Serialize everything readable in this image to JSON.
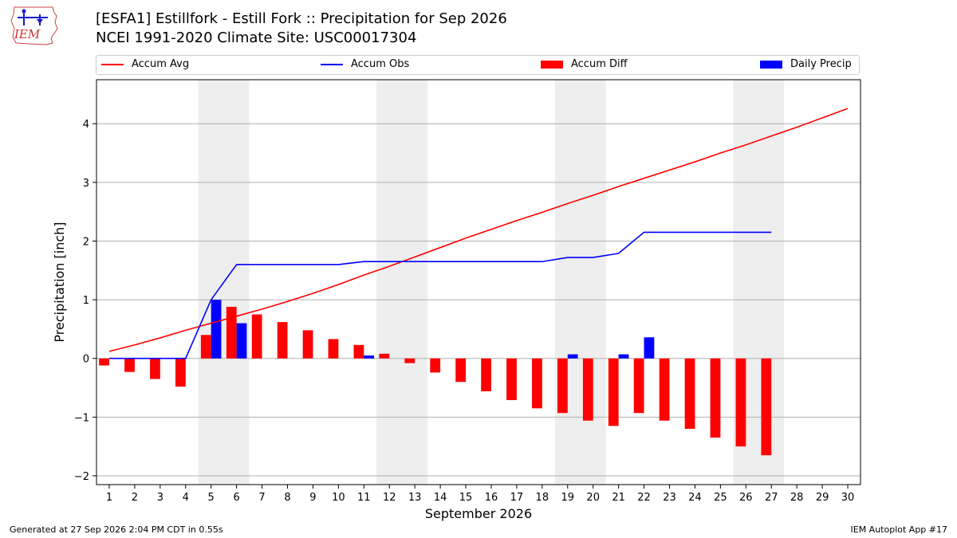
{
  "header": {
    "title_line1": "[ESFA1] Estillfork - Estill Fork :: Precipitation for Sep 2026",
    "title_line2": "NCEI 1991-2020 Climate Site: USC00017304"
  },
  "logo": {
    "text": "IEM"
  },
  "legend": {
    "items": [
      {
        "label": "Accum Avg",
        "kind": "line",
        "color": "#ff0000"
      },
      {
        "label": "Accum Obs",
        "kind": "line",
        "color": "#0000ff"
      },
      {
        "label": "Accum Diff",
        "kind": "box",
        "color": "#ff0000"
      },
      {
        "label": "Daily Precip",
        "kind": "box",
        "color": "#0000ff"
      }
    ]
  },
  "footer": {
    "left": "Generated at 27 Sep 2026 2:04 PM CDT in 0.55s",
    "right": "IEM Autoplot App #17"
  },
  "chart_data": {
    "type": "bar+line",
    "xlabel": "September 2026",
    "ylabel": "Precipitation [inch]",
    "x": [
      1,
      2,
      3,
      4,
      5,
      6,
      7,
      8,
      9,
      10,
      11,
      12,
      13,
      14,
      15,
      16,
      17,
      18,
      19,
      20,
      21,
      22,
      23,
      24,
      25,
      26,
      27,
      28,
      29,
      30
    ],
    "xlim": [
      0.5,
      30.5
    ],
    "ylim": [
      -2.15,
      4.75
    ],
    "yticks": [
      -2,
      -1,
      0,
      1,
      2,
      3,
      4
    ],
    "ytick_labels": [
      "−2",
      "−1",
      "0",
      "1",
      "2",
      "3",
      "4"
    ],
    "grid_y": true,
    "weekend_shading": [
      [
        4.5,
        6.5
      ],
      [
        11.5,
        13.5
      ],
      [
        18.5,
        20.5
      ],
      [
        25.5,
        27.5
      ]
    ],
    "series": [
      {
        "name": "Accum Avg",
        "type": "line",
        "color": "#ff0000",
        "values": [
          0.12,
          0.23,
          0.35,
          0.48,
          0.6,
          0.72,
          0.84,
          0.97,
          1.11,
          1.26,
          1.42,
          1.57,
          1.73,
          1.89,
          2.05,
          2.2,
          2.35,
          2.49,
          2.64,
          2.78,
          2.93,
          3.07,
          3.21,
          3.35,
          3.5,
          3.64,
          3.79,
          3.94,
          4.1,
          4.26
        ]
      },
      {
        "name": "Accum Obs",
        "type": "line",
        "color": "#0000ff",
        "values": [
          0,
          0,
          0,
          0,
          1.0,
          1.6,
          1.6,
          1.6,
          1.6,
          1.6,
          1.65,
          1.65,
          1.65,
          1.65,
          1.65,
          1.65,
          1.65,
          1.65,
          1.72,
          1.72,
          1.79,
          2.15,
          2.15,
          2.15,
          2.15,
          2.15,
          2.15,
          null,
          null,
          null
        ]
      },
      {
        "name": "Accum Diff",
        "type": "bar",
        "color": "#ff0000",
        "values": [
          -0.12,
          -0.23,
          -0.35,
          -0.48,
          0.4,
          0.88,
          0.75,
          0.62,
          0.48,
          0.33,
          0.23,
          0.08,
          -0.08,
          -0.24,
          -0.4,
          -0.56,
          -0.71,
          -0.85,
          -0.93,
          -1.06,
          -1.15,
          -0.93,
          -1.06,
          -1.2,
          -1.35,
          -1.5,
          -1.65,
          null,
          null,
          null
        ]
      },
      {
        "name": "Daily Precip",
        "type": "bar",
        "color": "#0000ff",
        "values": [
          0,
          0,
          0,
          0,
          1.0,
          0.6,
          0,
          0,
          0,
          0,
          0.05,
          0,
          0,
          0,
          0,
          0,
          0,
          0,
          0.07,
          0,
          0.07,
          0.36,
          0,
          0,
          0,
          0,
          0,
          null,
          null,
          null
        ]
      }
    ]
  }
}
